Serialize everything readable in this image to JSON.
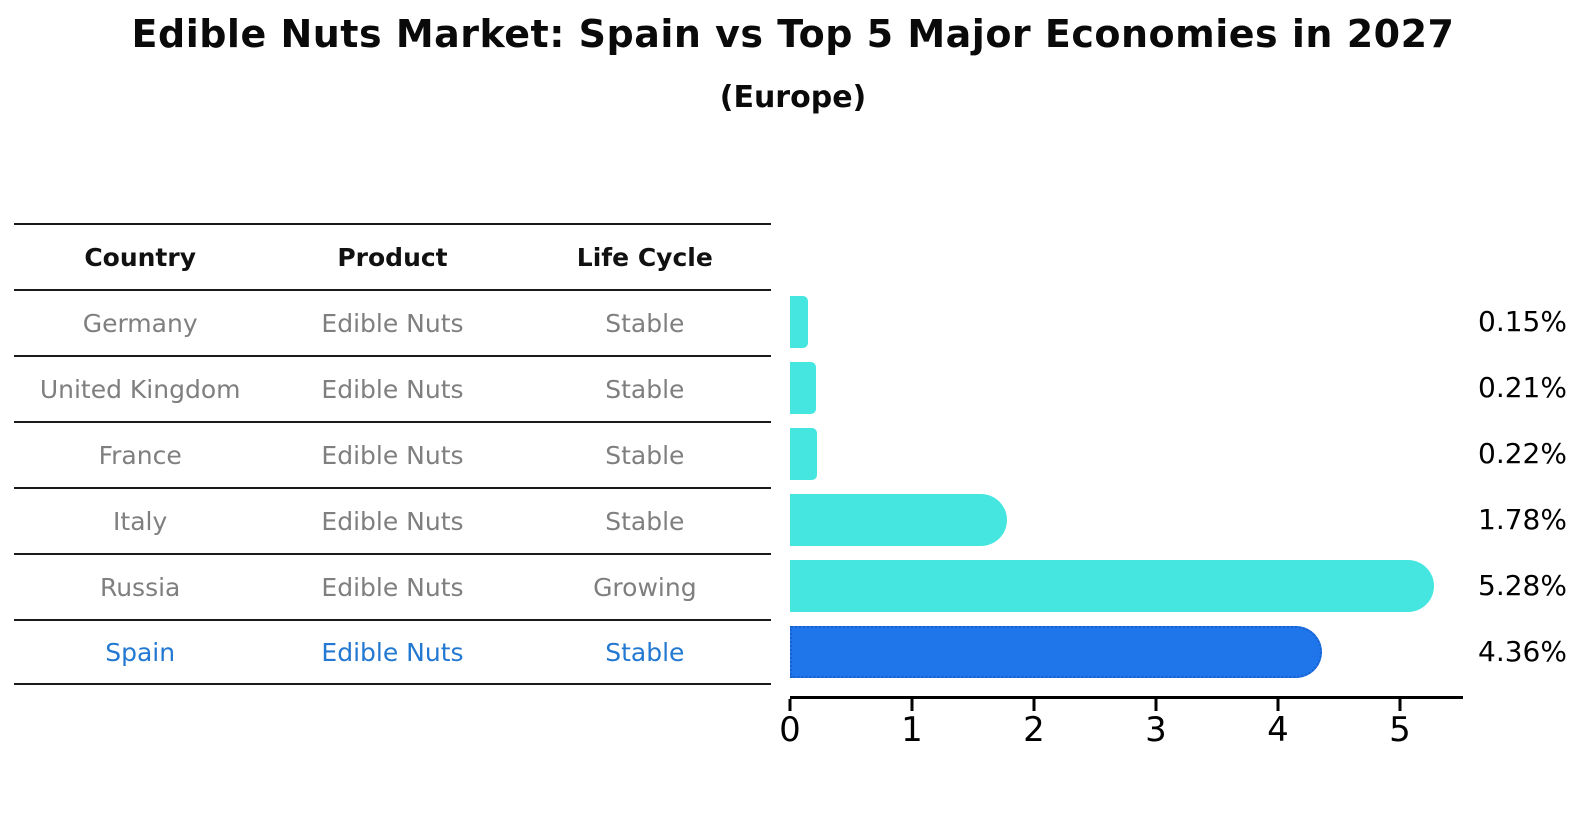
{
  "header": {
    "title": "Edible Nuts Market: Spain vs Top 5 Major Economies in 2027",
    "subtitle": "(Europe)"
  },
  "table": {
    "columns": [
      "Country",
      "Product",
      "Life Cycle"
    ],
    "rows": [
      {
        "country": "Germany",
        "product": "Edible Nuts",
        "life_cycle": "Stable",
        "highlighted": false
      },
      {
        "country": "United Kingdom",
        "product": "Edible Nuts",
        "life_cycle": "Stable",
        "highlighted": false
      },
      {
        "country": "France",
        "product": "Edible Nuts",
        "life_cycle": "Stable",
        "highlighted": false
      },
      {
        "country": "Italy",
        "product": "Edible Nuts",
        "life_cycle": "Stable",
        "highlighted": false
      },
      {
        "country": "Russia",
        "product": "Edible Nuts",
        "life_cycle": "Growing",
        "highlighted": false
      },
      {
        "country": "Spain",
        "product": "Edible Nuts",
        "life_cycle": "Stable",
        "highlighted": true
      }
    ]
  },
  "chart_data": {
    "type": "bar",
    "orientation": "horizontal",
    "title": "Edible Nuts Market: Spain vs Top 5 Major Economies in 2027 (Europe)",
    "categories": [
      "Germany",
      "United Kingdom",
      "France",
      "Italy",
      "Russia",
      "Spain"
    ],
    "values": [
      0.15,
      0.21,
      0.22,
      1.78,
      5.28,
      4.36
    ],
    "labels": [
      "0.15%",
      "0.21%",
      "0.22%",
      "1.78%",
      "5.28%",
      "4.36%"
    ],
    "xlabel": "",
    "ylabel": "",
    "xlim": [
      0,
      5.5
    ],
    "x_ticks": [
      0,
      1,
      2,
      3,
      4,
      5
    ],
    "grid": false,
    "legend": false,
    "highlight_index": 5,
    "bar_color": "#45E6E0",
    "highlight_color": "#1E76EA",
    "highlight_border_color": "#1A5FD0"
  },
  "colors": {
    "row_text": "#7f7f7f",
    "highlight_text": "#2378D2",
    "header_text": "#111111",
    "title_text": "#0a0a0a",
    "line": "#1a1a1a",
    "axis": "#000000",
    "background": "#ffffff"
  }
}
